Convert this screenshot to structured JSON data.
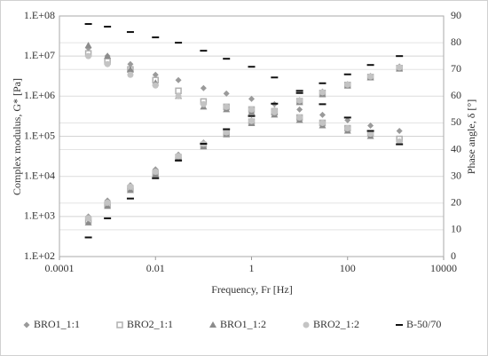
{
  "chart_data": {
    "type": "scatter",
    "x_label": "Frequency, Fr [Hz]",
    "y_label": "Complex modulus, G* [Pa]",
    "y2_label": "Phase angle, δ [°]",
    "xscale": "log",
    "yscale": "log",
    "xlim": [
      0.0001,
      10000
    ],
    "xticks": [
      0.0001,
      0.01,
      1,
      100,
      10000
    ],
    "ylim": [
      100,
      100000000
    ],
    "yticks": [
      {
        "value": 100,
        "label": "1.E+02"
      },
      {
        "value": 1000,
        "label": "1.E+03"
      },
      {
        "value": 10000,
        "label": "1.E+04"
      },
      {
        "value": 100000,
        "label": "1.E+05"
      },
      {
        "value": 1000000,
        "label": "1.E+06"
      },
      {
        "value": 10000000,
        "label": "1.E+07"
      },
      {
        "value": 100000000,
        "label": "1.E+08"
      }
    ],
    "y2lim": [
      0,
      90
    ],
    "y2ticks": [
      0,
      10,
      20,
      30,
      40,
      50,
      60,
      70,
      80,
      90
    ],
    "grid": true,
    "legend": "bottom",
    "x": [
      0.0004,
      0.001,
      0.003,
      0.01,
      0.03,
      0.1,
      0.3,
      1,
      3,
      10,
      30,
      100,
      300,
      1200
    ],
    "series": [
      {
        "name": "BRO1_1:1",
        "color": "#9a9a9a",
        "marker": "diamond",
        "values": [
          1000,
          2500,
          6000,
          15000,
          35000,
          70000,
          130000,
          250000,
          450000,
          800000,
          1300000,
          2000000,
          3200000,
          5500000
        ],
        "phase": [
          78,
          75,
          72,
          68,
          66,
          63,
          61,
          59,
          57,
          55,
          53,
          51,
          49,
          47
        ]
      },
      {
        "name": "BRO2_1:1",
        "color": "#b0b0b0",
        "marker": "square",
        "values": [
          800,
          2000,
          5000,
          12000,
          30000,
          60000,
          120000,
          230000,
          420000,
          750000,
          1200000,
          1900000,
          3000000,
          5000000
        ],
        "phase": [
          76,
          73,
          70,
          66,
          62,
          58,
          56,
          55,
          54,
          52,
          50,
          48,
          46,
          44
        ]
      },
      {
        "name": "BRO1_1:2",
        "color": "#8c8c8c",
        "marker": "triangle",
        "values": [
          700,
          1800,
          4500,
          11000,
          27000,
          55000,
          110000,
          210000,
          400000,
          700000,
          1100000,
          1800000,
          2900000,
          4800000
        ],
        "phase": [
          79,
          75,
          70,
          65,
          60,
          56,
          55,
          54,
          53,
          51,
          49,
          47,
          45,
          43
        ]
      },
      {
        "name": "BRO2_1:2",
        "color": "#c4c4c4",
        "marker": "circle",
        "values": [
          900,
          2200,
          5500,
          13000,
          32000,
          65000,
          125000,
          240000,
          440000,
          780000,
          1250000,
          1950000,
          3100000,
          5200000
        ],
        "phase": [
          75,
          72,
          68,
          64,
          60,
          57,
          56,
          55,
          54,
          52,
          50,
          48,
          46,
          43
        ]
      },
      {
        "name": "B-50/70",
        "color": "#111111",
        "marker": "dash",
        "values": [
          300,
          900,
          2800,
          9000,
          25000,
          65000,
          150000,
          320000,
          650000,
          1200000,
          2100000,
          3500000,
          6000000,
          10000000
        ],
        "phase": [
          87,
          86,
          84,
          82,
          80,
          77,
          74,
          71,
          67,
          62,
          57,
          52,
          47,
          42
        ]
      }
    ]
  }
}
